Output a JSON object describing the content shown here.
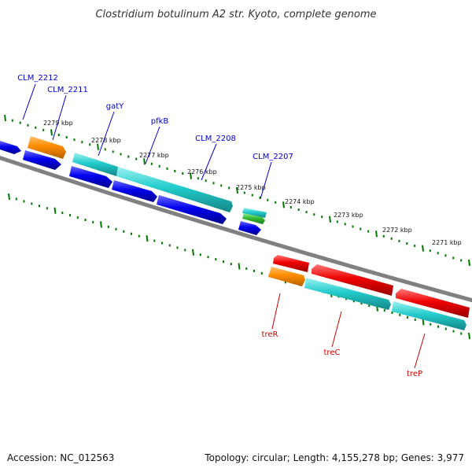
{
  "title": "Clostridium botulinum A2 str. Kyoto, complete genome",
  "footer": {
    "accession": "Accession: NC_012563",
    "summary": "Topology: circular; Length: 4,155,278 bp; Genes: 3,977"
  },
  "kbp_labels": [
    "2279 kbp",
    "2278 kbp",
    "2277 kbp",
    "2276 kbp",
    "2275 kbp",
    "2274 kbp",
    "2273 kbp",
    "2272 kbp",
    "2271 kbp"
  ],
  "gene_labels_top": [
    "CLM_2212",
    "CLM_2211",
    "gatY",
    "pfkB",
    "CLM_2208",
    "CLM_2207"
  ],
  "gene_labels_bottom": [
    "treR",
    "treC",
    "treP"
  ],
  "colors": {
    "label_blue": "#0000cc",
    "label_red": "#cc0000",
    "tick_green": "#007700",
    "backbone": "#808080",
    "gene_blue": "#0000ee",
    "gene_cyan": "#22cccc",
    "gene_orange": "#ff8c00",
    "gene_red": "#ee0000",
    "gene_green": "#33bb33"
  }
}
